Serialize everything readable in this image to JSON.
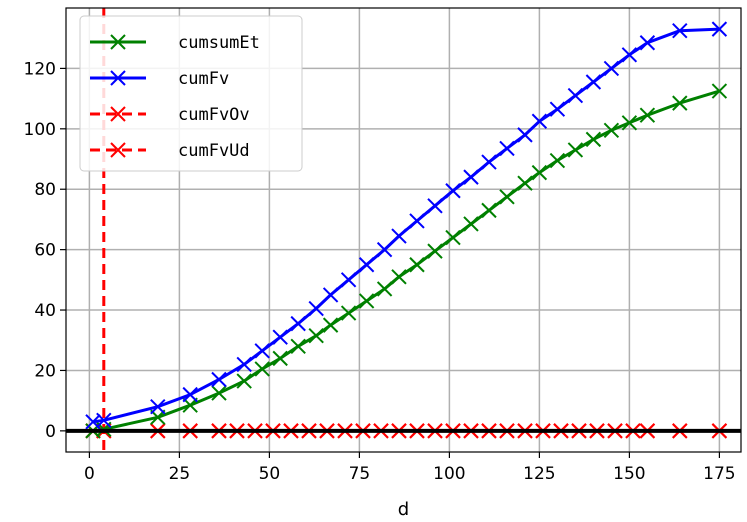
{
  "chart_data": {
    "type": "line",
    "xlabel": "d",
    "ylabel": "",
    "title": "",
    "xlim": [
      -6.5,
      181
    ],
    "ylim": [
      -7,
      140
    ],
    "xticks": [
      0,
      25,
      50,
      75,
      100,
      125,
      150,
      175
    ],
    "yticks": [
      0,
      20,
      40,
      60,
      80,
      100,
      120
    ],
    "grid": true,
    "legend_position": "top-left",
    "reference_lines": {
      "horizontal_y": 0,
      "horizontal_color": "#000000",
      "vertical_x": 4,
      "vertical_color": "#ff0000"
    },
    "series": [
      {
        "name": "cumsumEt",
        "color": "#008000",
        "linestyle": "solid",
        "marker": "x",
        "x": [
          1,
          4,
          19,
          28,
          36,
          43,
          48,
          53,
          58,
          63,
          67,
          72,
          77,
          82,
          86,
          91,
          96,
          101,
          106,
          111,
          116,
          121,
          125,
          130,
          135,
          140,
          145,
          150,
          155,
          164,
          175
        ],
        "y": [
          0,
          0.5,
          4.5,
          8.5,
          12.5,
          16.5,
          20.5,
          24,
          28,
          31.5,
          35,
          39,
          43,
          47,
          51,
          55,
          59.5,
          64,
          68.5,
          73,
          77.5,
          82,
          85.5,
          89.5,
          93,
          96.5,
          99.5,
          102,
          104.5,
          108.5,
          112.5
        ]
      },
      {
        "name": "cumFv",
        "color": "#0000ff",
        "linestyle": "solid",
        "marker": "x",
        "x": [
          1,
          4,
          19,
          28,
          36,
          43,
          48,
          53,
          58,
          63,
          67,
          72,
          77,
          82,
          86,
          91,
          96,
          101,
          106,
          111,
          116,
          121,
          125,
          130,
          135,
          140,
          145,
          150,
          155,
          164,
          175
        ],
        "y": [
          3,
          3.5,
          8,
          12,
          17,
          22,
          26.5,
          31,
          35.5,
          40.5,
          45,
          50,
          55,
          60,
          64.5,
          69.5,
          74.5,
          79.5,
          84,
          89,
          93.5,
          98,
          102.5,
          106.5,
          111,
          115.5,
          120,
          124.5,
          128.5,
          132.5,
          133
        ]
      },
      {
        "name": "cumFvOv",
        "color": "#ff0000",
        "linestyle": "dashed",
        "marker": "x",
        "x": [
          1,
          4,
          19,
          28,
          36,
          41,
          46,
          51,
          56,
          61,
          66,
          71,
          76,
          81,
          86,
          91,
          96,
          101,
          106,
          111,
          116,
          121,
          126,
          131,
          136,
          141,
          146,
          151,
          155,
          164,
          175
        ],
        "y": [
          0,
          0,
          0,
          0,
          0,
          0,
          0,
          0,
          0,
          0,
          0,
          0,
          0,
          0,
          0,
          0,
          0,
          0,
          0,
          0,
          0,
          0,
          0,
          0,
          0,
          0,
          0,
          0,
          0,
          0,
          0
        ]
      },
      {
        "name": "cumFvUd",
        "color": "#ff0000",
        "linestyle": "dashed",
        "marker": "x",
        "x": [
          1,
          4,
          19,
          28,
          36,
          41,
          46,
          51,
          56,
          61,
          66,
          71,
          76,
          81,
          86,
          91,
          96,
          101,
          106,
          111,
          116,
          121,
          126,
          131,
          136,
          141,
          146,
          151,
          155,
          164,
          175
        ],
        "y": [
          0,
          0,
          0,
          0,
          0,
          0,
          0,
          0,
          0,
          0,
          0,
          0,
          0,
          0,
          0,
          0,
          0,
          0,
          0,
          0,
          0,
          0,
          0,
          0,
          0,
          0,
          0,
          0,
          0,
          0,
          0
        ]
      }
    ]
  }
}
